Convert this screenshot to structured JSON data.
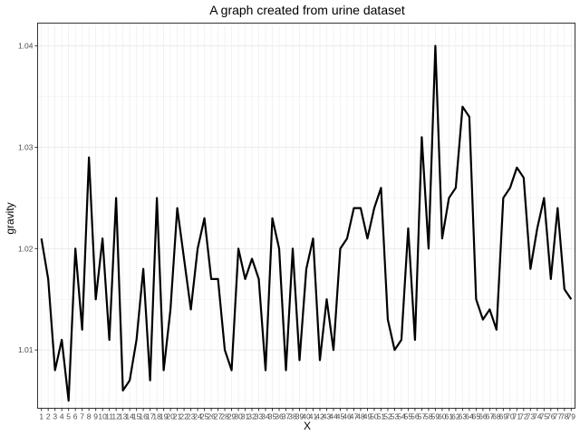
{
  "chart_data": {
    "type": "line",
    "title": "A graph created from urine dataset",
    "xlabel": "X",
    "ylabel": "gravity",
    "xlim": [
      1,
      79
    ],
    "ylim": [
      1.00425,
      1.04225
    ],
    "y_ticks": [
      1.01,
      1.02,
      1.03,
      1.04
    ],
    "y_tick_labels": [
      "1.01",
      "1.02",
      "1.03",
      "1.04"
    ],
    "grid": true,
    "theme": "bw",
    "line_color": "#000000",
    "series": [
      {
        "x": [
          1,
          2,
          3,
          4,
          5,
          6,
          7,
          8,
          9,
          10,
          11,
          12,
          13,
          14,
          15,
          16,
          17,
          18,
          19,
          20,
          21,
          22,
          23,
          24,
          25,
          26,
          27,
          28,
          29,
          30,
          31,
          32,
          33,
          34,
          35,
          36,
          37,
          38,
          39,
          40,
          41,
          42,
          43,
          44,
          45,
          46,
          47,
          48,
          49,
          50,
          51,
          52,
          53,
          54,
          55,
          56,
          57,
          58,
          59,
          60,
          61,
          62,
          63,
          64,
          65,
          66,
          67,
          68,
          69,
          70,
          71,
          72,
          73,
          74,
          75,
          76,
          77,
          78,
          79
        ],
        "values": [
          1.021,
          1.017,
          1.008,
          1.011,
          1.005,
          1.02,
          1.012,
          1.029,
          1.015,
          1.021,
          1.011,
          1.025,
          1.006,
          1.007,
          1.011,
          1.018,
          1.007,
          1.025,
          1.008,
          1.014,
          1.024,
          1.019,
          1.014,
          1.02,
          1.023,
          1.017,
          1.017,
          1.01,
          1.008,
          1.02,
          1.017,
          1.019,
          1.017,
          1.008,
          1.023,
          1.02,
          1.008,
          1.02,
          1.009,
          1.018,
          1.021,
          1.009,
          1.015,
          1.01,
          1.02,
          1.021,
          1.024,
          1.024,
          1.021,
          1.024,
          1.026,
          1.013,
          1.01,
          1.011,
          1.022,
          1.011,
          1.031,
          1.02,
          1.04,
          1.021,
          1.025,
          1.026,
          1.034,
          1.033,
          1.015,
          1.013,
          1.014,
          1.012,
          1.025,
          1.026,
          1.028,
          1.027,
          1.018,
          1.022,
          1.025,
          1.017,
          1.024,
          1.016,
          1.015
        ]
      }
    ]
  }
}
